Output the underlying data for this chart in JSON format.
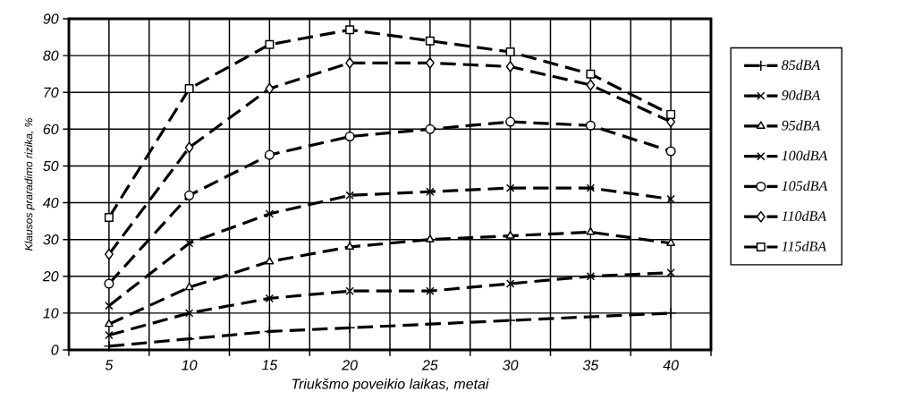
{
  "chart_data": {
    "type": "line",
    "xlabel": "Triukšmo poveikio laikas, metai",
    "ylabel": "Klausos praradimo rizika, %",
    "categories": [
      "5",
      "10",
      "15",
      "20",
      "25",
      "30",
      "35",
      "40"
    ],
    "ylim": [
      0,
      90
    ],
    "yticks": [
      0,
      10,
      20,
      30,
      40,
      50,
      60,
      70,
      80,
      90
    ],
    "grid": true,
    "legend": "right",
    "line_style": "dashed",
    "series": [
      {
        "name": "85dBA",
        "color": "#000000",
        "marker": "plus",
        "values": [
          1,
          3,
          5,
          6,
          7,
          8,
          9,
          10
        ]
      },
      {
        "name": "90dBA",
        "color": "#000000",
        "marker": "cross",
        "values": [
          4,
          10,
          14,
          16,
          16,
          18,
          20,
          21
        ]
      },
      {
        "name": "95dBA",
        "color": "#000000",
        "marker": "triangle",
        "values": [
          7,
          17,
          24,
          28,
          30,
          31,
          32,
          29
        ]
      },
      {
        "name": "100dBA",
        "color": "#000000",
        "marker": "cross",
        "values": [
          12,
          29,
          37,
          42,
          43,
          44,
          44,
          41
        ]
      },
      {
        "name": "105dBA",
        "color": "#000000",
        "marker": "circle",
        "values": [
          18,
          42,
          53,
          58,
          60,
          62,
          61,
          54
        ]
      },
      {
        "name": "110dBA",
        "color": "#000000",
        "marker": "diamond",
        "values": [
          26,
          55,
          71,
          78,
          78,
          77,
          72,
          62
        ]
      },
      {
        "name": "115dBA",
        "color": "#000000",
        "marker": "square",
        "values": [
          36,
          71,
          83,
          87,
          84,
          81,
          75,
          64
        ]
      }
    ]
  }
}
